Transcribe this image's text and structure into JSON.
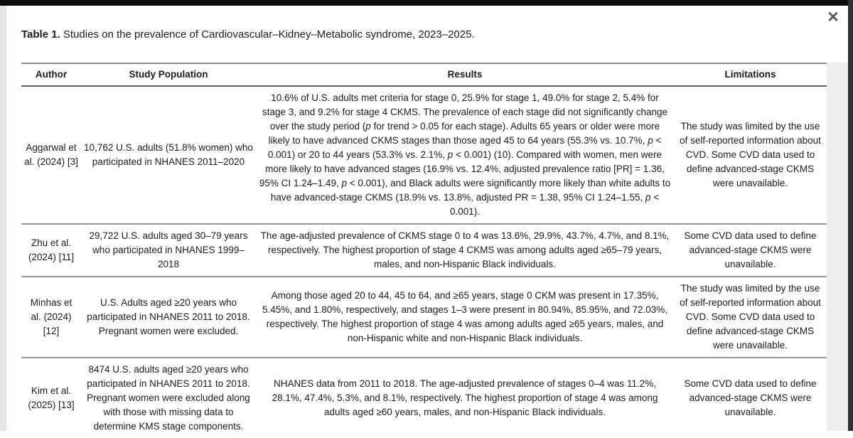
{
  "modal": {
    "close_icon": "✕"
  },
  "colors": {
    "top_bar": "#0f0f0f",
    "right_edge": "#303030",
    "close_icon": "#555a60",
    "row_divider": "#999999"
  },
  "table": {
    "title_label": "Table 1.",
    "title_text": " Studies on the prevalence of Cardiovascular–Kidney–Metabolic syndrome, 2023–2025.",
    "columns": [
      "Author",
      "Study Population",
      "Results",
      "Limitations"
    ],
    "rows": [
      {
        "author": "Aggarwal et al. (2024) [3]",
        "population": "10,762 U.S. adults (51.8% women) who participated in NHANES 2011–2020",
        "results": [
          {
            "t": "10.6% of U.S. adults met criteria for stage 0, 25.9% for stage 1, 49.0% for stage 2, 5.4% for stage 3, and 9.2% for stage 4 CKMS. The prevalence of each stage did not significantly change over the study period ("
          },
          {
            "t": "p",
            "i": true
          },
          {
            "t": " for trend > 0.05 for each stage). Adults 65 years or older were more likely to have advanced CKMS stages than those aged 45 to 64 years (55.3% vs. 10.7%, "
          },
          {
            "t": "p",
            "i": true
          },
          {
            "t": " < 0.001) or 20 to 44 years (53.3% vs. 2.1%, "
          },
          {
            "t": "p",
            "i": true
          },
          {
            "t": " < 0.001) (10). Compared with women, men were more likely to have advanced stages (16.9% vs. 12.4%, adjusted prevalence ratio [PR] = 1.36, 95% CI 1.24–1.49, "
          },
          {
            "t": "p",
            "i": true
          },
          {
            "t": " < 0.001), and Black adults were significantly more likely than white adults to have advanced-stage CKMS (18.9% vs. 13.8%, adjusted PR = 1.38, 95% CI 1.24–1.55, "
          },
          {
            "t": "p",
            "i": true
          },
          {
            "t": " < 0.001)."
          }
        ],
        "limitations": "The study was limited by the use of self-reported information about CVD. Some CVD data used to define advanced-stage CKMS were unavailable."
      },
      {
        "author": "Zhu et al. (2024) [11]",
        "population": "29,722 U.S. adults aged 30–79 years who participated in NHANES 1999–2018",
        "results": [
          {
            "t": "The age-adjusted prevalence of CKMS stage 0 to 4 was 13.6%, 29.9%, 43.7%, 4.7%, and 8.1%, respectively. The highest proportion of stage 4 CKMS was among adults aged ≥65–79 years, males, and non-Hispanic Black individuals."
          }
        ],
        "limitations": "Some CVD data used to define advanced-stage CKMS were unavailable."
      },
      {
        "author": "Minhas et al. (2024) [12]",
        "population": "U.S. Adults aged ≥20 years who participated in NHANES 2011 to 2018. Pregnant women were excluded.",
        "results": [
          {
            "t": "Among those aged 20 to 44, 45 to 64, and ≥65 years, stage 0 CKM was present in 17.35%, 5.45%, and 1.80%, respectively, and stages 1–3 were present in 80.94%, 85.95%, and 72.03%, respectively. The highest proportion of stage 4 was among adults aged ≥65 years, males, and non-Hispanic white and non-Hispanic Black individuals."
          }
        ],
        "limitations": "The study was limited by the use of self-reported information about CVD. Some CVD data used to define advanced-stage CKMS were unavailable."
      },
      {
        "author": "Kim et al. (2025) [13]",
        "population": "8474 U.S. adults aged ≥20 years who participated in NHANES 2011 to 2018. Pregnant women were excluded along with those with missing data to determine KMS stage components.",
        "results": [
          {
            "t": "NHANES data from 2011 to 2018. The age-adjusted prevalence of stages 0–4 was 11.2%, 28.1%, 47.4%, 5.3%, and 8.1%, respectively. The highest proportion of stage 4 was among adults aged ≥60 years, males, and non-Hispanic Black individuals."
          }
        ],
        "limitations": "Some CVD data used to define advanced-stage CKMS were unavailable."
      }
    ]
  }
}
